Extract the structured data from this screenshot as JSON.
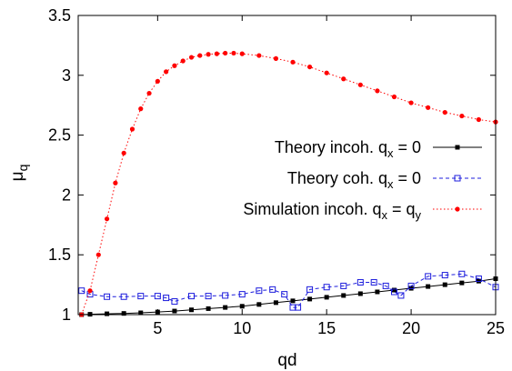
{
  "chart_data": {
    "type": "line",
    "xlabel": "qd",
    "ylabel_main": "μ",
    "ylabel_sub": "q",
    "xlim": [
      0.3,
      25
    ],
    "ylim": [
      1,
      3.5
    ],
    "xticks": [
      5,
      10,
      15,
      20,
      25
    ],
    "yticks": [
      1,
      1.5,
      2,
      2.5,
      3,
      3.5
    ],
    "xtick_labels": [
      "5",
      "10",
      "15",
      "20",
      "25"
    ],
    "ytick_labels": [
      "1",
      "1.5",
      "2",
      "2.5",
      "3",
      "3.5"
    ],
    "legend_position": "right",
    "series": [
      {
        "name": "Theory incoh. q = 0",
        "legend_main": "Theory incoh. q",
        "legend_sub": "x",
        "legend_tail": " = 0",
        "color": "#000000",
        "marker": "filled-square",
        "line": "solid",
        "x": [
          0.5,
          1.0,
          2.0,
          3.0,
          4.0,
          5.0,
          6.0,
          7.0,
          8.0,
          9.0,
          10.0,
          11.0,
          12.0,
          13.0,
          14.0,
          15.0,
          16.0,
          17.0,
          18.0,
          19.0,
          20.0,
          21.0,
          22.0,
          23.0,
          24.0,
          25.0
        ],
        "y": [
          1.0,
          1.003,
          1.007,
          1.01,
          1.015,
          1.022,
          1.03,
          1.04,
          1.05,
          1.06,
          1.07,
          1.085,
          1.1,
          1.115,
          1.13,
          1.145,
          1.16,
          1.175,
          1.19,
          1.205,
          1.22,
          1.235,
          1.25,
          1.265,
          1.28,
          1.3
        ]
      },
      {
        "name": "Theory coh. q = 0",
        "legend_main": "Theory coh. q",
        "legend_sub": "x",
        "legend_tail": " = 0",
        "color": "#1c1cdc",
        "marker": "open-square",
        "line": "dashed",
        "x": [
          0.5,
          1.0,
          2.0,
          3.0,
          4.0,
          5.0,
          5.5,
          6.0,
          7.0,
          8.0,
          9.0,
          10.0,
          11.0,
          11.8,
          12.5,
          13.0,
          13.3,
          14.0,
          15.0,
          16.0,
          17.0,
          17.8,
          18.5,
          19.0,
          19.4,
          20.0,
          21.0,
          22.0,
          23.0,
          24.0,
          25.0
        ],
        "y": [
          1.2,
          1.17,
          1.15,
          1.15,
          1.155,
          1.155,
          1.14,
          1.11,
          1.155,
          1.155,
          1.16,
          1.17,
          1.2,
          1.21,
          1.17,
          1.06,
          1.06,
          1.21,
          1.23,
          1.24,
          1.27,
          1.27,
          1.24,
          1.19,
          1.16,
          1.24,
          1.32,
          1.33,
          1.34,
          1.3,
          1.23
        ]
      },
      {
        "name": "Simulation incoh. q = q",
        "legend_main": "Simulation incoh. q",
        "legend_sub": "x",
        "legend_tail": " = q",
        "legend_sub2": "y",
        "color": "#ff0000",
        "marker": "filled-circle",
        "line": "dotted",
        "x": [
          0.5,
          1.0,
          1.5,
          2.0,
          2.5,
          3.0,
          3.5,
          4.0,
          4.5,
          5.0,
          5.5,
          6.0,
          6.5,
          7.0,
          7.5,
          8.0,
          8.5,
          9.0,
          9.5,
          10.0,
          11.0,
          12.0,
          13.0,
          14.0,
          15.0,
          16.0,
          17.0,
          18.0,
          19.0,
          20.0,
          21.0,
          22.0,
          23.0,
          24.0,
          25.0
        ],
        "y": [
          1.0,
          1.2,
          1.5,
          1.8,
          2.1,
          2.35,
          2.55,
          2.72,
          2.85,
          2.95,
          3.03,
          3.08,
          3.12,
          3.15,
          3.165,
          3.175,
          3.18,
          3.185,
          3.185,
          3.18,
          3.165,
          3.14,
          3.11,
          3.07,
          3.02,
          2.97,
          2.92,
          2.87,
          2.82,
          2.77,
          2.73,
          2.69,
          2.66,
          2.63,
          2.61
        ]
      }
    ]
  }
}
